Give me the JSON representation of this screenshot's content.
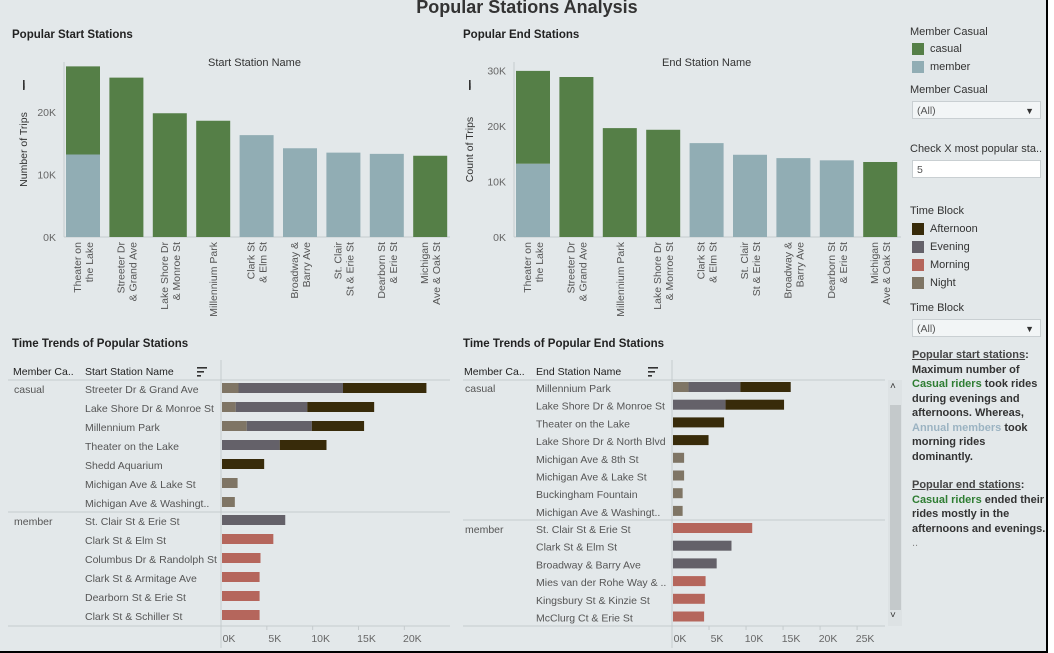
{
  "title": "Popular Stations Analysis",
  "colors": {
    "casual": "#557f47",
    "member": "#91adb4",
    "afternoon": "#382b0a",
    "evening": "#646169",
    "morning": "#b5665c",
    "night": "#7f7565"
  },
  "start_chart": {
    "section_title": "Popular Start Stations",
    "subtitle": "Start Station Name",
    "ylabel": "Number of Trips",
    "sort_icon": "sort-icon"
  },
  "end_chart": {
    "section_title": "Popular End Stations",
    "subtitle": "End Station Name",
    "ylabel": "Count of Trips",
    "sort_icon": "sort-icon"
  },
  "start_trends": {
    "section_title": "Time Trends of Popular Stations",
    "col1": "Member Ca..",
    "col2": "Start Station Name",
    "groups": [
      "casual",
      "member"
    ]
  },
  "end_trends": {
    "section_title": "Time Trends of Popular End Stations",
    "col1": "Member Ca..",
    "col2": "End Station Name",
    "groups": [
      "casual",
      "member"
    ]
  },
  "legend_member": {
    "title": "Member Casual",
    "items": [
      {
        "label": "casual",
        "color": "#557f47"
      },
      {
        "label": "member",
        "color": "#91adb4"
      }
    ]
  },
  "filter_member": {
    "label": "Member Casual",
    "value": "(All)"
  },
  "filter_topx": {
    "label": "Check X most popular sta..",
    "value": "5"
  },
  "legend_time": {
    "title": "Time Block",
    "items": [
      {
        "label": "Afternoon",
        "color": "#382b0a"
      },
      {
        "label": "Evening",
        "color": "#646169"
      },
      {
        "label": "Morning",
        "color": "#b5665c"
      },
      {
        "label": "Night",
        "color": "#7f7565"
      }
    ]
  },
  "filter_time": {
    "label": "Time Block",
    "value": "(All)"
  },
  "notes": {
    "p1_title": "Popular start stations",
    "p1_colon": ":",
    "p1_a": "Maximum number of",
    "p1_casual": "Casual riders",
    "p1_b": "took rides during evenings and afternoons.",
    "p1_c": "Whereas,",
    "p1_annual": "Annual members",
    "p1_d": "took morning rides dominantly.",
    "p2_title": "Popular end stations",
    "p2_colon": ":",
    "p2_casual": "Casual riders",
    "p2_b": "ended their rides mostly in the afternoons and evenings.",
    "p2_dots": ".."
  },
  "chart_data": [
    {
      "type": "bar",
      "title": "Popular Start Stations",
      "xlabel": "Start Station Name",
      "ylabel": "Number of Trips",
      "ylim": [
        0,
        28000
      ],
      "yticks": [
        0,
        10000,
        20000
      ],
      "ytick_labels": [
        "0K",
        "10K",
        "20K"
      ],
      "categories": [
        "Theater on the Lake",
        "Streeter Dr & Grand Ave",
        "Lake Shore Dr & Monroe St",
        "Millennium Park",
        "Clark St & Elm St",
        "Broadway & Barry Ave",
        "St. Clair St & Erie St",
        "Dearborn St & Erie St",
        "Michigan Ave & Oak St"
      ],
      "series": [
        {
          "name": "member",
          "values": [
            13200,
            0,
            0,
            0,
            16300,
            14200,
            13500,
            13300,
            0
          ]
        },
        {
          "name": "casual",
          "values": [
            14100,
            25500,
            19800,
            18600,
            0,
            0,
            0,
            0,
            13000
          ]
        }
      ]
    },
    {
      "type": "bar",
      "title": "Popular End Stations",
      "xlabel": "End Station Name",
      "ylabel": "Count of Trips",
      "ylim": [
        0,
        31500
      ],
      "yticks": [
        0,
        10000,
        20000,
        30000
      ],
      "ytick_labels": [
        "0K",
        "10K",
        "20K",
        "30K"
      ],
      "categories": [
        "Theater on the Lake",
        "Streeter Dr & Grand Ave",
        "Millennium Park",
        "Lake Shore Dr & Monroe St",
        "Clark St & Elm St",
        "St. Clair St & Erie St",
        "Broadway & Barry Ave",
        "Dearborn St & Erie St",
        "Michigan Ave & Oak St"
      ],
      "series": [
        {
          "name": "member",
          "values": [
            13200,
            0,
            0,
            0,
            16900,
            14800,
            14200,
            13800,
            0
          ]
        },
        {
          "name": "casual",
          "values": [
            16700,
            28800,
            19600,
            19300,
            0,
            0,
            0,
            0,
            13500
          ]
        }
      ]
    },
    {
      "type": "bar",
      "orientation": "horizontal-stacked",
      "title": "Time Trends of Popular Stations",
      "xlim": [
        0,
        24000
      ],
      "xticks": [
        0,
        5000,
        10000,
        15000,
        20000
      ],
      "xtick_labels": [
        "0K",
        "5K",
        "10K",
        "15K",
        "20K"
      ],
      "segment_order": [
        "Night",
        "Evening",
        "Afternoon",
        "Morning"
      ],
      "rows": [
        {
          "group": "casual",
          "station": "Streeter Dr & Grand Ave",
          "values": {
            "Night": 1800,
            "Evening": 11400,
            "Afternoon": 9100,
            "Morning": 0
          }
        },
        {
          "group": "casual",
          "station": "Lake Shore Dr & Monroe St",
          "values": {
            "Night": 1500,
            "Evening": 7800,
            "Afternoon": 7300,
            "Morning": 0
          }
        },
        {
          "group": "casual",
          "station": "Millennium Park",
          "values": {
            "Night": 2700,
            "Evening": 7100,
            "Afternoon": 5700,
            "Morning": 0
          }
        },
        {
          "group": "casual",
          "station": "Theater on the Lake",
          "values": {
            "Night": 0,
            "Evening": 6300,
            "Afternoon": 5100,
            "Morning": 0
          }
        },
        {
          "group": "casual",
          "station": "Shedd Aquarium",
          "values": {
            "Night": 0,
            "Evening": 0,
            "Afternoon": 4600,
            "Morning": 0
          }
        },
        {
          "group": "casual",
          "station": "Michigan Ave & Lake St",
          "values": {
            "Night": 1700,
            "Evening": 0,
            "Afternoon": 0,
            "Morning": 0
          }
        },
        {
          "group": "casual",
          "station": "Michigan Ave & Washingt..",
          "values": {
            "Night": 1400,
            "Evening": 0,
            "Afternoon": 0,
            "Morning": 0
          }
        },
        {
          "group": "member",
          "station": "St. Clair St & Erie St",
          "values": {
            "Night": 0,
            "Evening": 6900,
            "Afternoon": 0,
            "Morning": 0
          }
        },
        {
          "group": "member",
          "station": "Clark St & Elm St",
          "values": {
            "Night": 0,
            "Evening": 0,
            "Afternoon": 0,
            "Morning": 5600
          }
        },
        {
          "group": "member",
          "station": "Columbus Dr & Randolph St",
          "values": {
            "Night": 0,
            "Evening": 0,
            "Afternoon": 0,
            "Morning": 4200
          }
        },
        {
          "group": "member",
          "station": "Clark St & Armitage Ave",
          "values": {
            "Night": 0,
            "Evening": 0,
            "Afternoon": 0,
            "Morning": 4100
          }
        },
        {
          "group": "member",
          "station": "Dearborn St & Erie St",
          "values": {
            "Night": 0,
            "Evening": 0,
            "Afternoon": 0,
            "Morning": 4100
          }
        },
        {
          "group": "member",
          "station": "Clark St & Schiller St",
          "values": {
            "Night": 0,
            "Evening": 0,
            "Afternoon": 0,
            "Morning": 4100
          }
        }
      ]
    },
    {
      "type": "bar",
      "orientation": "horizontal-stacked",
      "title": "Time Trends of Popular End Stations",
      "xlim": [
        0,
        28500
      ],
      "xticks": [
        0,
        5000,
        10000,
        15000,
        20000,
        25000
      ],
      "xtick_labels": [
        "0K",
        "5K",
        "10K",
        "15K",
        "20K",
        "25K"
      ],
      "segment_order": [
        "Night",
        "Evening",
        "Afternoon",
        "Morning"
      ],
      "rows": [
        {
          "group": "casual",
          "station": "Millennium Park",
          "values": {
            "Night": 2100,
            "Evening": 7000,
            "Afternoon": 6800,
            "Morning": 0
          }
        },
        {
          "group": "casual",
          "station": "Lake Shore Dr & Monroe St",
          "values": {
            "Night": 0,
            "Evening": 7100,
            "Afternoon": 7900,
            "Morning": 0
          }
        },
        {
          "group": "casual",
          "station": "Theater on the Lake",
          "values": {
            "Night": 0,
            "Evening": 0,
            "Afternoon": 6900,
            "Morning": 0
          }
        },
        {
          "group": "casual",
          "station": "Lake Shore Dr & North Blvd",
          "values": {
            "Night": 0,
            "Evening": 0,
            "Afternoon": 4800,
            "Morning": 0
          }
        },
        {
          "group": "casual",
          "station": "Michigan Ave & 8th St",
          "values": {
            "Night": 1500,
            "Evening": 0,
            "Afternoon": 0,
            "Morning": 0
          }
        },
        {
          "group": "casual",
          "station": "Michigan Ave & Lake St",
          "values": {
            "Night": 1500,
            "Evening": 0,
            "Afternoon": 0,
            "Morning": 0
          }
        },
        {
          "group": "casual",
          "station": "Buckingham Fountain",
          "values": {
            "Night": 1300,
            "Evening": 0,
            "Afternoon": 0,
            "Morning": 0
          }
        },
        {
          "group": "casual",
          "station": "Michigan Ave & Washingt..",
          "values": {
            "Night": 1300,
            "Evening": 0,
            "Afternoon": 0,
            "Morning": 0
          }
        },
        {
          "group": "member",
          "station": "St. Clair St & Erie St",
          "values": {
            "Night": 0,
            "Evening": 0,
            "Afternoon": 0,
            "Morning": 10700
          }
        },
        {
          "group": "member",
          "station": "Clark St & Elm St",
          "values": {
            "Night": 0,
            "Evening": 7900,
            "Afternoon": 0,
            "Morning": 0
          }
        },
        {
          "group": "member",
          "station": "Broadway & Barry Ave",
          "values": {
            "Night": 0,
            "Evening": 5900,
            "Afternoon": 0,
            "Morning": 0
          }
        },
        {
          "group": "member",
          "station": "Mies van der Rohe Way & ..",
          "values": {
            "Night": 0,
            "Evening": 0,
            "Afternoon": 0,
            "Morning": 4400
          }
        },
        {
          "group": "member",
          "station": "Kingsbury St & Kinzie St",
          "values": {
            "Night": 0,
            "Evening": 0,
            "Afternoon": 0,
            "Morning": 4300
          }
        },
        {
          "group": "member",
          "station": "McClurg Ct & Erie St",
          "values": {
            "Night": 0,
            "Evening": 0,
            "Afternoon": 0,
            "Morning": 4200
          }
        }
      ]
    }
  ]
}
